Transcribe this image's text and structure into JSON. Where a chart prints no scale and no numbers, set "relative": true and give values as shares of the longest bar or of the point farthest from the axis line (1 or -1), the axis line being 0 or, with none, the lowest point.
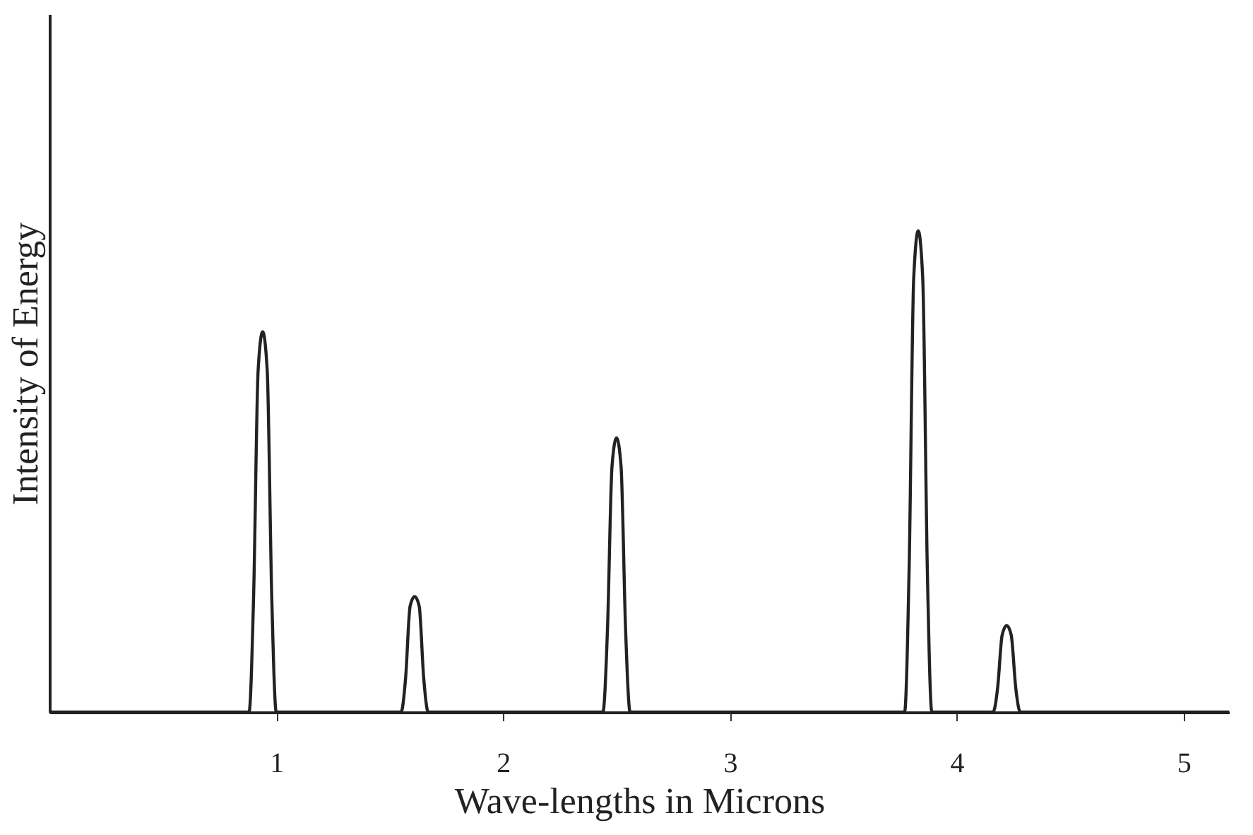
{
  "chart_data": {
    "type": "line",
    "relative": true,
    "xlabel": "Wave-lengths in Microns",
    "ylabel": "Intensity of Energy",
    "xlim": [
      0,
      5.2
    ],
    "xticks": [
      1,
      2,
      3,
      4,
      5
    ],
    "tick_labels": "x",
    "grid": false,
    "marker": "none",
    "line_style": "solid",
    "series": [
      {
        "color": "#222222",
        "x": [
          0,
          0.88,
          0.9,
          0.92,
          0.94,
          0.96,
          0.98,
          1.0,
          1.55,
          1.57,
          1.59,
          1.61,
          1.63,
          1.65,
          1.67,
          2.44,
          2.46,
          2.48,
          2.5,
          2.52,
          2.54,
          2.56,
          3.77,
          3.79,
          3.81,
          3.83,
          3.85,
          3.87,
          3.89,
          4.16,
          4.18,
          4.2,
          4.22,
          4.24,
          4.26,
          4.28,
          5.2
        ],
        "values": [
          0,
          0,
          0.24,
          0.71,
          0.79,
          0.71,
          0.24,
          0,
          0,
          0.07,
          0.22,
          0.24,
          0.22,
          0.07,
          0,
          0,
          0.17,
          0.51,
          0.57,
          0.51,
          0.17,
          0,
          0,
          0.3,
          0.9,
          1.0,
          0.9,
          0.3,
          0,
          0,
          0.05,
          0.16,
          0.18,
          0.16,
          0.05,
          0,
          0
        ]
      }
    ]
  }
}
